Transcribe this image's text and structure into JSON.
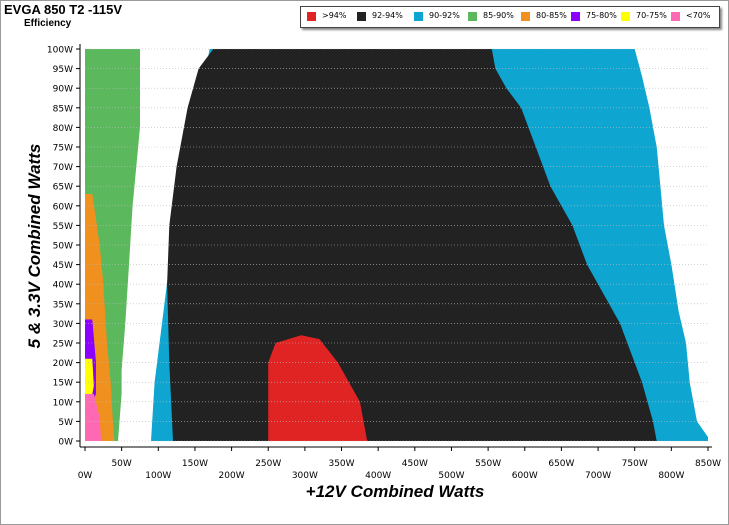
{
  "header": {
    "title": "EVGA 850 T2 -115V",
    "subtitle": "Efficiency"
  },
  "legend": [
    {
      "label": ">94%",
      "color": "#e02424"
    },
    {
      "label": "92-94%",
      "color": "#222222"
    },
    {
      "label": "90-92%",
      "color": "#0ea5d1"
    },
    {
      "label": "85-90%",
      "color": "#5cb85c"
    },
    {
      "label": "80-85%",
      "color": "#f0901e"
    },
    {
      "label": "75-80%",
      "color": "#8b00ff"
    },
    {
      "label": "70-75%",
      "color": "#ffff00"
    },
    {
      "label": "<70%",
      "color": "#ff69b4"
    }
  ],
  "chart_data": {
    "type": "heatmap",
    "title": "EVGA 850 T2 -115V",
    "subtitle": "Efficiency",
    "xlabel": "+12V Combined Watts",
    "ylabel": "5 & 3.3V Combined Watts",
    "xlim": [
      0,
      850
    ],
    "ylim": [
      0,
      100
    ],
    "x_ticks": [
      "0W",
      "50W",
      "100W",
      "150W",
      "200W",
      "250W",
      "300W",
      "350W",
      "400W",
      "450W",
      "500W",
      "550W",
      "600W",
      "650W",
      "700W",
      "750W",
      "800W",
      "850W"
    ],
    "y_ticks": [
      "0W",
      "5W",
      "10W",
      "15W",
      "20W",
      "25W",
      "30W",
      "35W",
      "40W",
      "45W",
      "50W",
      "55W",
      "60W",
      "65W",
      "70W",
      "75W",
      "80W",
      "85W",
      "90W",
      "95W",
      "100W"
    ],
    "value_encoding": "efficiency band",
    "bands": [
      ">94%",
      "92-94%",
      "90-92%",
      "85-90%",
      "80-85%",
      "75-80%",
      "70-75%",
      "<70%"
    ],
    "band_colors": [
      "#e02424",
      "#222222",
      "#0ea5d1",
      "#5cb85c",
      "#f0901e",
      "#8b00ff",
      "#ffff00",
      "#ff69b4"
    ],
    "regions": [
      {
        "band": "90-92%",
        "polygon": [
          [
            0,
            100
          ],
          [
            170,
            100
          ],
          [
            165,
            95
          ],
          [
            155,
            85
          ],
          [
            135,
            72
          ],
          [
            125,
            60
          ],
          [
            115,
            45
          ],
          [
            105,
            30
          ],
          [
            95,
            15
          ],
          [
            90,
            0
          ],
          [
            850,
            0
          ],
          [
            850,
            1
          ],
          [
            835,
            5
          ],
          [
            825,
            15
          ],
          [
            820,
            25
          ],
          [
            810,
            33
          ],
          [
            800,
            45
          ],
          [
            790,
            55
          ],
          [
            785,
            65
          ],
          [
            780,
            75
          ],
          [
            770,
            85
          ],
          [
            760,
            93
          ],
          [
            750,
            100
          ]
        ]
      },
      {
        "band": "92-94%",
        "polygon": [
          [
            175,
            100
          ],
          [
            555,
            100
          ],
          [
            560,
            95
          ],
          [
            575,
            90
          ],
          [
            595,
            85
          ],
          [
            615,
            75
          ],
          [
            635,
            65
          ],
          [
            665,
            55
          ],
          [
            685,
            45
          ],
          [
            730,
            30
          ],
          [
            760,
            15
          ],
          [
            775,
            5
          ],
          [
            780,
            0
          ],
          [
            120,
            0
          ],
          [
            115,
            20
          ],
          [
            112,
            40
          ],
          [
            115,
            55
          ],
          [
            125,
            70
          ],
          [
            140,
            85
          ],
          [
            155,
            95
          ]
        ]
      },
      {
        "band": ">94%",
        "polygon": [
          [
            250,
            0
          ],
          [
            250,
            20
          ],
          [
            260,
            25
          ],
          [
            295,
            27
          ],
          [
            320,
            26
          ],
          [
            345,
            20
          ],
          [
            360,
            15
          ],
          [
            375,
            10
          ],
          [
            385,
            0
          ]
        ]
      },
      {
        "band": "85-90%",
        "polygon": [
          [
            0,
            100
          ],
          [
            75,
            100
          ],
          [
            75,
            80
          ],
          [
            65,
            60
          ],
          [
            60,
            45
          ],
          [
            55,
            30
          ],
          [
            50,
            18
          ],
          [
            50,
            12
          ],
          [
            45,
            0
          ],
          [
            0,
            0
          ]
        ]
      },
      {
        "band": "80-85%",
        "polygon": [
          [
            0,
            63
          ],
          [
            10,
            63
          ],
          [
            20,
            50
          ],
          [
            25,
            40
          ],
          [
            30,
            25
          ],
          [
            35,
            15
          ],
          [
            38,
            5
          ],
          [
            40,
            0
          ],
          [
            0,
            0
          ]
        ]
      },
      {
        "band": "75-80%",
        "polygon": [
          [
            0,
            31
          ],
          [
            10,
            31
          ],
          [
            15,
            20
          ],
          [
            15,
            12
          ],
          [
            5,
            8
          ],
          [
            0,
            8
          ]
        ]
      },
      {
        "band": "70-75%",
        "polygon": [
          [
            0,
            21
          ],
          [
            10,
            21
          ],
          [
            12,
            14
          ],
          [
            8,
            10
          ],
          [
            0,
            10
          ]
        ]
      },
      {
        "band": "<70%",
        "polygon": [
          [
            0,
            12
          ],
          [
            12,
            12
          ],
          [
            20,
            6
          ],
          [
            22,
            0
          ],
          [
            0,
            0
          ]
        ]
      }
    ]
  }
}
